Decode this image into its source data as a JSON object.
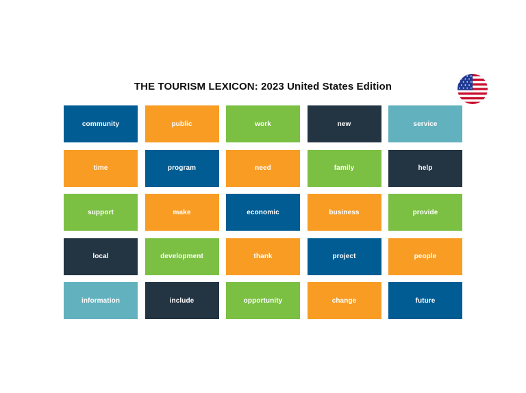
{
  "title": "THE TOURISM LEXICON: 2023 United States Edition",
  "flag_icon": "us-flag-icon",
  "colors": {
    "blue": "#015c94",
    "orange": "#f89c24",
    "green": "#7bc043",
    "navy": "#233443",
    "teal": "#62b1be"
  },
  "tiles": [
    {
      "label": "community",
      "color": "#015c94"
    },
    {
      "label": "public",
      "color": "#f89c24"
    },
    {
      "label": "work",
      "color": "#7bc043"
    },
    {
      "label": "new",
      "color": "#233443"
    },
    {
      "label": "service",
      "color": "#62b1be"
    },
    {
      "label": "time",
      "color": "#f89c24"
    },
    {
      "label": "program",
      "color": "#015c94"
    },
    {
      "label": "need",
      "color": "#f89c24"
    },
    {
      "label": "family",
      "color": "#7bc043"
    },
    {
      "label": "help",
      "color": "#233443"
    },
    {
      "label": "support",
      "color": "#7bc043"
    },
    {
      "label": "make",
      "color": "#f89c24"
    },
    {
      "label": "economic",
      "color": "#015c94"
    },
    {
      "label": "business",
      "color": "#f89c24"
    },
    {
      "label": "provide",
      "color": "#7bc043"
    },
    {
      "label": "local",
      "color": "#233443"
    },
    {
      "label": "development",
      "color": "#7bc043"
    },
    {
      "label": "thank",
      "color": "#f89c24"
    },
    {
      "label": "project",
      "color": "#015c94"
    },
    {
      "label": "people",
      "color": "#f89c24"
    },
    {
      "label": "information",
      "color": "#62b1be"
    },
    {
      "label": "include",
      "color": "#233443"
    },
    {
      "label": "opportunity",
      "color": "#7bc043"
    },
    {
      "label": "change",
      "color": "#f89c24"
    },
    {
      "label": "future",
      "color": "#015c94"
    }
  ]
}
